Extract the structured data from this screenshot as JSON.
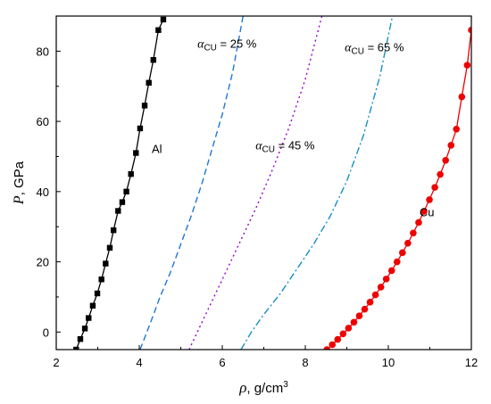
{
  "chart_data": {
    "type": "line",
    "xlabel": {
      "symbol": "ρ",
      "text": ", g/cm",
      "sup": "3"
    },
    "ylabel": {
      "symbol": "P",
      "text": ", GPa"
    },
    "xlim": [
      2,
      12
    ],
    "ylim": [
      -5,
      90
    ],
    "xticks": [
      2,
      4,
      6,
      8,
      10,
      12
    ],
    "yticks": [
      0,
      20,
      40,
      60,
      80
    ],
    "grid": false,
    "legend": "none",
    "series": [
      {
        "name": "Al",
        "color": "#000000",
        "line": "solid",
        "marker": "square",
        "x": [
          2.48,
          2.58,
          2.69,
          2.78,
          2.88,
          2.99,
          3.09,
          3.19,
          3.29,
          3.38,
          3.49,
          3.59,
          3.69,
          3.8,
          3.92,
          4.02,
          4.13,
          4.23,
          4.34,
          4.46,
          4.58
        ],
        "y": [
          -5,
          -2,
          1,
          4,
          7.5,
          11,
          15,
          19.5,
          24,
          29,
          34.5,
          37,
          40,
          45,
          51,
          58,
          64.5,
          71,
          77.5,
          86,
          89
        ]
      },
      {
        "name": "α_CU = 25 %",
        "color": "#1f77d4",
        "line": "dashed",
        "marker": "none",
        "x": [
          4.02,
          4.25,
          4.5,
          4.75,
          5.0,
          5.25,
          5.5,
          5.75,
          6.0,
          6.25,
          6.5
        ],
        "y": [
          -5,
          2,
          10,
          17,
          25,
          33,
          42,
          52,
          62,
          74,
          90
        ]
      },
      {
        "name": "α_CU = 45 %",
        "color": "#9900cc",
        "line": "dotted",
        "marker": "none",
        "x": [
          5.2,
          5.6,
          6.0,
          6.4,
          6.8,
          7.2,
          7.6,
          8.0,
          8.4
        ],
        "y": [
          -5,
          5,
          15,
          25,
          35,
          46,
          58,
          72,
          90
        ]
      },
      {
        "name": "α_CU = 65 %",
        "color": "#1a8fc7",
        "line": "dashdot",
        "marker": "none",
        "x": [
          6.45,
          6.7,
          7.0,
          7.4,
          7.8,
          8.2,
          8.6,
          9.0,
          9.4,
          9.8,
          10.1
        ],
        "y": [
          -5,
          0,
          5,
          11,
          18,
          25,
          33,
          43,
          56,
          73,
          90
        ]
      },
      {
        "name": "Cu",
        "color": "#ee0000",
        "line": "solid",
        "marker": "circle",
        "x": [
          8.52,
          8.65,
          8.78,
          8.91,
          9.04,
          9.17,
          9.3,
          9.43,
          9.56,
          9.69,
          9.82,
          9.95,
          10.08,
          10.21,
          10.34,
          10.47,
          10.6,
          10.73,
          10.86,
          10.99,
          11.12,
          11.25,
          11.38,
          11.51,
          11.64,
          11.77,
          11.9,
          12.0
        ],
        "y": [
          -5,
          -3.6,
          -2.1,
          -0.5,
          1.1,
          2.8,
          4.6,
          6.5,
          8.5,
          10.6,
          12.8,
          15.1,
          17.5,
          20.0,
          22.6,
          25.3,
          28.2,
          31.2,
          34.4,
          37.7,
          41.2,
          44.9,
          48.9,
          53.2,
          57.8,
          67.0,
          76.0,
          86.0
        ]
      }
    ],
    "annotations": [
      {
        "series": 0,
        "text": "Al",
        "x": 4.3,
        "y": 51
      },
      {
        "series": 1,
        "symbol": "α",
        "sub": "CU",
        "text": " = 25 %",
        "x": 5.4,
        "y": 81
      },
      {
        "series": 2,
        "symbol": "α",
        "sub": "CU",
        "text": " = 45 %",
        "x": 6.8,
        "y": 52
      },
      {
        "series": 3,
        "symbol": "α",
        "sub": "CU",
        "text": " = 65 %",
        "x": 8.95,
        "y": 80
      },
      {
        "series": 4,
        "text": "Cu",
        "x": 10.75,
        "y": 33
      }
    ]
  }
}
